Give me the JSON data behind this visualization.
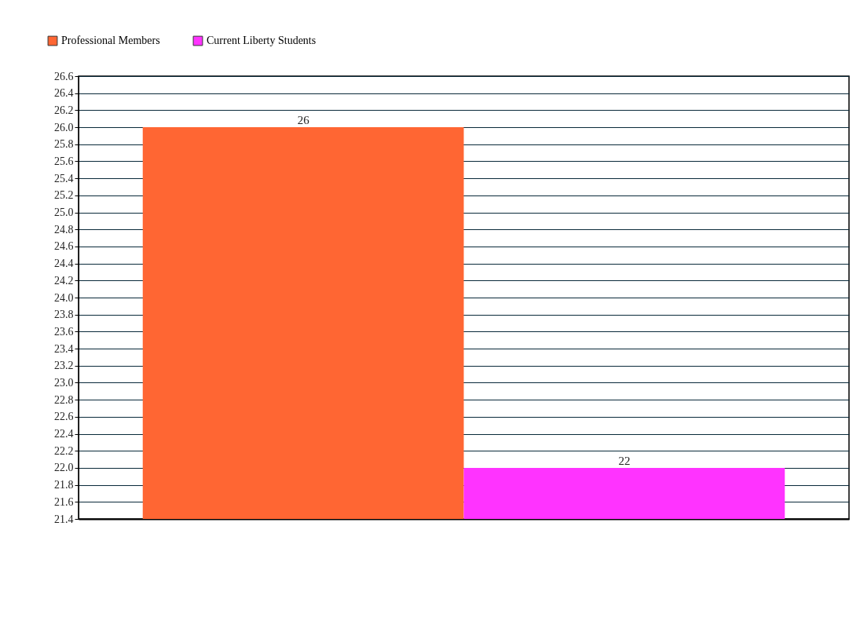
{
  "chart_data": {
    "type": "bar",
    "categories": [
      null
    ],
    "series": [
      {
        "name": "Professional Members",
        "color": "#ff6633",
        "values": [
          26
        ]
      },
      {
        "name": "Current Liberty Students",
        "color": "#ff33ff",
        "values": [
          22
        ]
      }
    ],
    "ylim": [
      21.4,
      26.6
    ],
    "yticks": [
      {
        "value": 21.4,
        "label": "21.4"
      },
      {
        "value": 21.6,
        "label": "21.6"
      },
      {
        "value": 21.8,
        "label": "21.8"
      },
      {
        "value": 22,
        "label": "22.0"
      },
      {
        "value": 22.2,
        "label": "22.2"
      },
      {
        "value": 22.4,
        "label": "22.4"
      },
      {
        "value": 22.6,
        "label": "22.6"
      },
      {
        "value": 22.8,
        "label": "22.8"
      },
      {
        "value": 23,
        "label": "23.0"
      },
      {
        "value": 23.2,
        "label": "23.2"
      },
      {
        "value": 23.4,
        "label": "23.4"
      },
      {
        "value": 23.6,
        "label": "23.6"
      },
      {
        "value": 23.8,
        "label": "23.8"
      },
      {
        "value": 24,
        "label": "24.0"
      },
      {
        "value": 24.2,
        "label": "24.2"
      },
      {
        "value": 24.4,
        "label": "24.4"
      },
      {
        "value": 24.6,
        "label": "24.6"
      },
      {
        "value": 24.8,
        "label": "24.8"
      },
      {
        "value": 25,
        "label": "25.0"
      },
      {
        "value": 25.2,
        "label": "25.2"
      },
      {
        "value": 25.4,
        "label": "25.4"
      },
      {
        "value": 25.6,
        "label": "25.6"
      },
      {
        "value": 25.8,
        "label": "25.8"
      },
      {
        "value": 26,
        "label": "26.0"
      },
      {
        "value": 26.2,
        "label": "26.2"
      },
      {
        "value": 26.4,
        "label": "26.4"
      },
      {
        "value": 26.6,
        "label": "26.6"
      }
    ],
    "grid": "y",
    "legend": "top left",
    "data_labels": true
  }
}
